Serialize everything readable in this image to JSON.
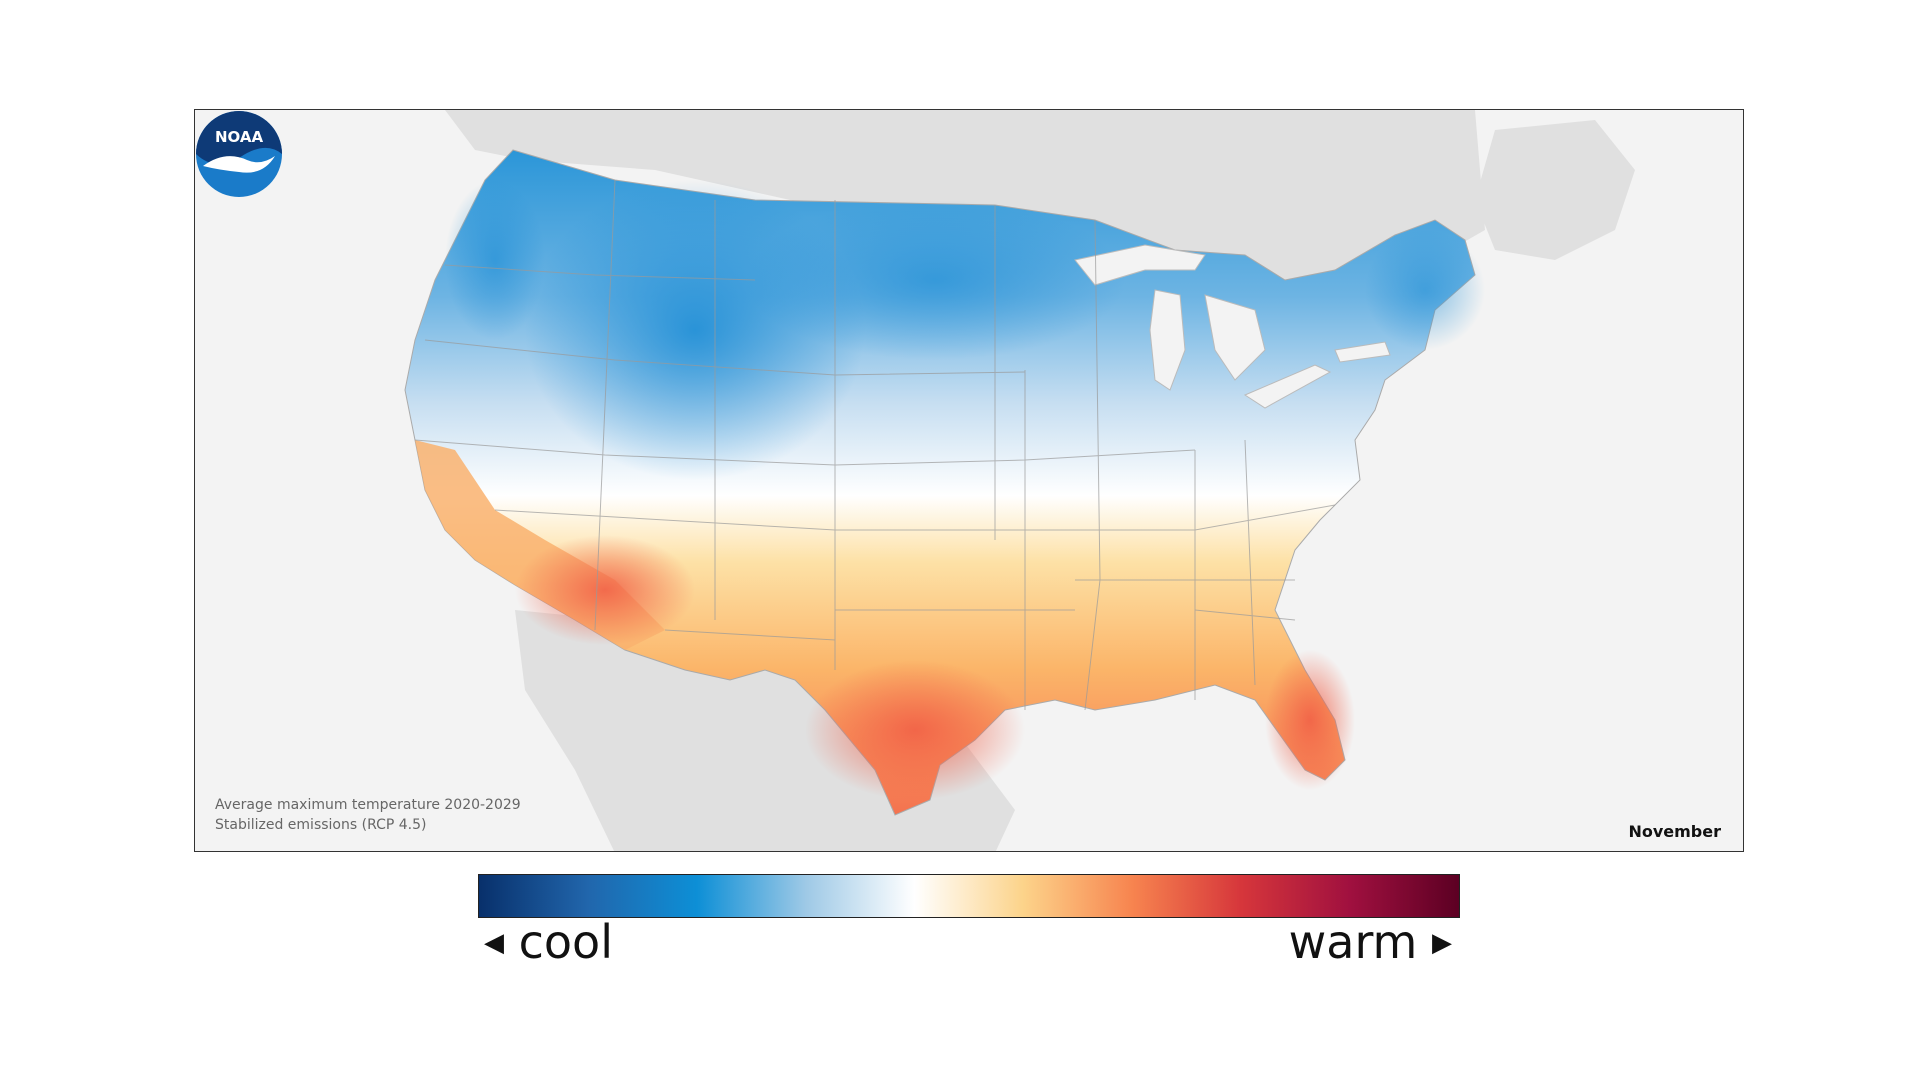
{
  "map": {
    "caption_line1": "Average maximum temperature 2020-2029",
    "caption_line2": "Stabilized emissions (RCP 4.5)",
    "month": "November",
    "logo_text": "NOAA"
  },
  "legend": {
    "cool_label": "cool",
    "warm_label": "warm",
    "cool_arrow": "◀",
    "warm_arrow": "▶",
    "gradient_colors": [
      "#08306b",
      "#2166ac",
      "#0d8fd6",
      "#9ec9e6",
      "#ffffff",
      "#fcd38a",
      "#f7844f",
      "#d6363b",
      "#a0103f",
      "#5c0023"
    ]
  }
}
